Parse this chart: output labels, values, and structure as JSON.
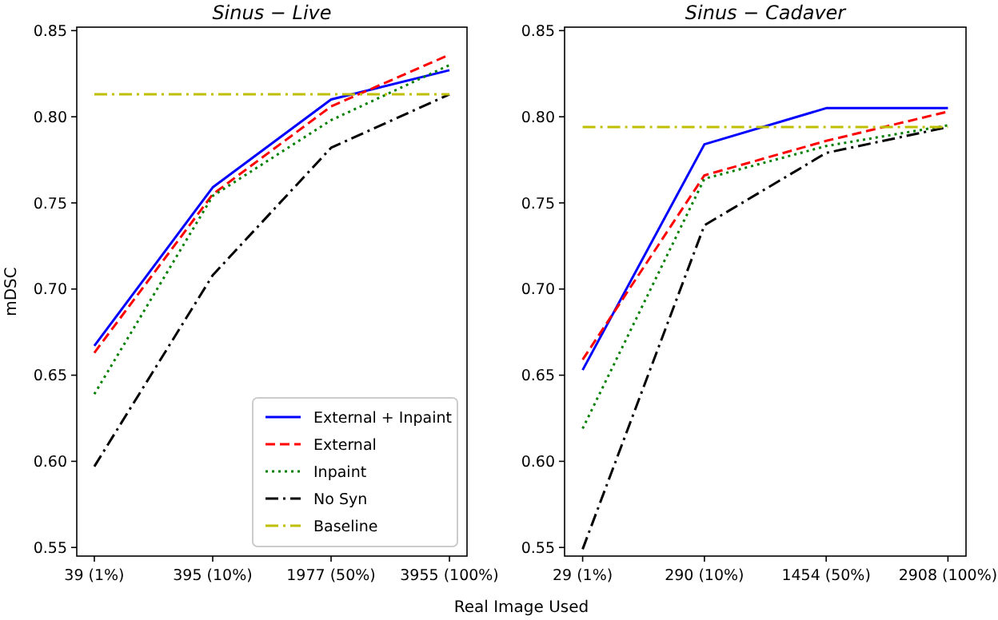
{
  "chart_data": [
    {
      "type": "line",
      "title": "Sinus − Live",
      "xlabel": "Real Image Used",
      "ylabel": "mDSC",
      "categories": [
        "39 (1%)",
        "395 (10%)",
        "1977 (50%)",
        "3955 (100%)"
      ],
      "ylim": [
        0.545,
        0.852
      ],
      "yticks": [
        {
          "value": 0.55,
          "label": "0.55"
        },
        {
          "value": 0.6,
          "label": "0.60"
        },
        {
          "value": 0.65,
          "label": "0.65"
        },
        {
          "value": 0.7,
          "label": "0.70"
        },
        {
          "value": 0.75,
          "label": "0.75"
        },
        {
          "value": 0.8,
          "label": "0.80"
        },
        {
          "value": 0.85,
          "label": "0.85"
        }
      ],
      "grid": false,
      "legend": "bottom right",
      "marker": "none",
      "series": [
        {
          "name": "External + Inpaint",
          "color": "#0000ff",
          "line_style": "solid",
          "values": [
            0.667,
            0.759,
            0.81,
            0.827
          ]
        },
        {
          "name": "External",
          "color": "#ff0000",
          "line_style": "dashed",
          "values": [
            0.663,
            0.755,
            0.806,
            0.836
          ]
        },
        {
          "name": "Inpaint",
          "color": "#008000",
          "line_style": "dotted",
          "values": [
            0.639,
            0.754,
            0.798,
            0.83
          ]
        },
        {
          "name": "No Syn",
          "color": "#000000",
          "line_style": "dashdot",
          "values": [
            0.597,
            0.708,
            0.782,
            0.813
          ]
        },
        {
          "name": "Baseline",
          "color": "#bfbf00",
          "line_style": "dashdot",
          "values": [
            0.813,
            0.813,
            0.813,
            0.813
          ]
        }
      ]
    },
    {
      "type": "line",
      "title": "Sinus − Cadaver",
      "categories": [
        "29 (1%)",
        "290 (10%)",
        "1454 (50%)",
        "2908 (100%)"
      ],
      "ylim": [
        0.545,
        0.852
      ],
      "yticks": [
        {
          "value": 0.55,
          "label": "0.55"
        },
        {
          "value": 0.6,
          "label": "0.60"
        },
        {
          "value": 0.65,
          "label": "0.65"
        },
        {
          "value": 0.7,
          "label": "0.70"
        },
        {
          "value": 0.75,
          "label": "0.75"
        },
        {
          "value": 0.8,
          "label": "0.80"
        },
        {
          "value": 0.85,
          "label": "0.85"
        }
      ],
      "grid": false,
      "legend": false,
      "marker": "none",
      "series": [
        {
          "color": "#0000ff",
          "line_style": "solid",
          "values": [
            0.653,
            0.784,
            0.805,
            0.805
          ]
        },
        {
          "color": "#ff0000",
          "line_style": "dashed",
          "values": [
            0.659,
            0.766,
            0.786,
            0.803
          ]
        },
        {
          "color": "#008000",
          "line_style": "dotted",
          "values": [
            0.619,
            0.764,
            0.783,
            0.795
          ]
        },
        {
          "color": "#000000",
          "line_style": "dashdot",
          "values": [
            0.549,
            0.737,
            0.779,
            0.794
          ]
        },
        {
          "color": "#bfbf00",
          "line_style": "dashdot",
          "values": [
            0.794,
            0.794,
            0.794,
            0.794
          ]
        }
      ]
    }
  ]
}
